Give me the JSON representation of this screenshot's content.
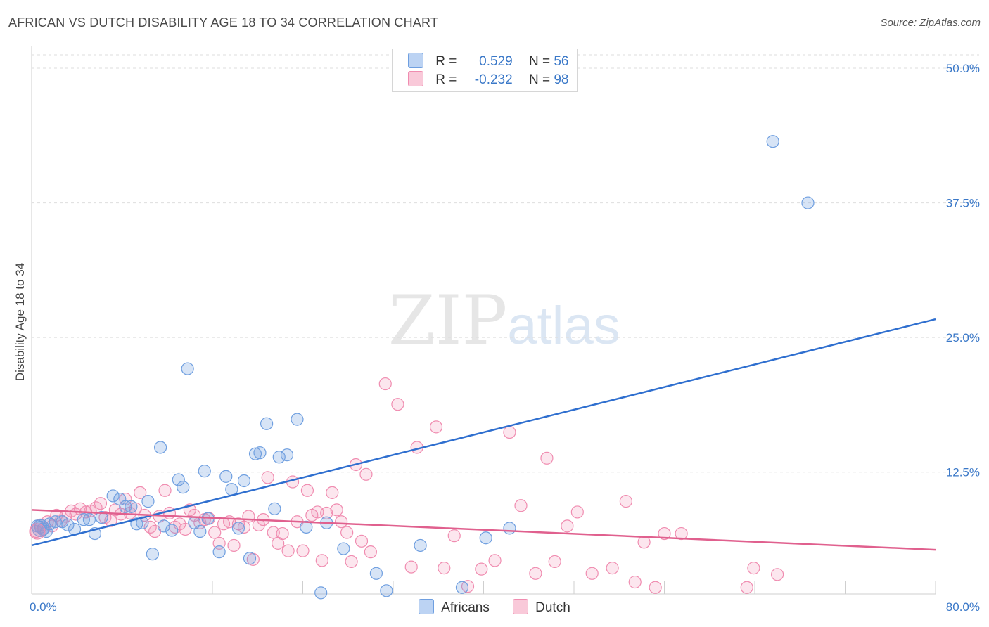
{
  "title": "AFRICAN VS DUTCH DISABILITY AGE 18 TO 34 CORRELATION CHART",
  "source": "Source: ZipAtlas.com",
  "watermark": {
    "zip": "ZIP",
    "atlas": "atlas"
  },
  "legend": {
    "africans": {
      "r_label": "R =",
      "r_value": "0.529",
      "n_label": "N =",
      "n_value": "56"
    },
    "dutch": {
      "r_label": "R =",
      "r_value": "-0.232",
      "n_label": "N =",
      "n_value": "98"
    }
  },
  "bottom_legend": {
    "africans": "Africans",
    "dutch": "Dutch"
  },
  "chart_data": {
    "type": "scatter",
    "title": "AFRICAN VS DUTCH DISABILITY AGE 18 TO 34 CORRELATION CHART",
    "xlabel": "",
    "ylabel": "Disability Age 18 to 34",
    "xlim": [
      0,
      80
    ],
    "ylim": [
      0,
      52
    ],
    "x_tick_labels": [
      "0.0%",
      "80.0%"
    ],
    "y_ticks": [
      12.5,
      25.0,
      37.5,
      50.0
    ],
    "y_tick_labels": [
      "12.5%",
      "25.0%",
      "37.5%",
      "50.0%"
    ],
    "colors": {
      "africans": "#6f9fe0",
      "africans_line": "#2f6fcf",
      "dutch": "#f08cb0",
      "dutch_line": "#e0608e"
    },
    "series": [
      {
        "name": "Africans",
        "trend": {
          "x": [
            0,
            80
          ],
          "y": [
            5.7,
            26.7
          ]
        },
        "points": [
          [
            0.5,
            7.5
          ],
          [
            1.0,
            7.2
          ],
          [
            1.3,
            7.0
          ],
          [
            1.6,
            7.7
          ],
          [
            2.1,
            7.9
          ],
          [
            2.7,
            7.9
          ],
          [
            3.2,
            7.6
          ],
          [
            3.8,
            7.2
          ],
          [
            4.6,
            8.1
          ],
          [
            5.1,
            8.1
          ],
          [
            5.6,
            6.8
          ],
          [
            6.2,
            8.3
          ],
          [
            7.2,
            10.3
          ],
          [
            7.8,
            10.0
          ],
          [
            8.3,
            9.3
          ],
          [
            8.8,
            9.3
          ],
          [
            9.3,
            7.7
          ],
          [
            9.8,
            7.8
          ],
          [
            10.3,
            9.8
          ],
          [
            10.7,
            4.9
          ],
          [
            11.4,
            14.8
          ],
          [
            11.7,
            7.5
          ],
          [
            12.4,
            7.1
          ],
          [
            13.0,
            11.8
          ],
          [
            13.4,
            11.1
          ],
          [
            13.8,
            22.1
          ],
          [
            14.4,
            7.8
          ],
          [
            14.9,
            7.0
          ],
          [
            15.3,
            12.6
          ],
          [
            15.6,
            8.2
          ],
          [
            16.6,
            5.1
          ],
          [
            17.2,
            12.1
          ],
          [
            17.7,
            10.9
          ],
          [
            18.3,
            7.3
          ],
          [
            18.8,
            11.7
          ],
          [
            19.3,
            4.5
          ],
          [
            19.8,
            14.2
          ],
          [
            20.2,
            14.3
          ],
          [
            20.8,
            17.0
          ],
          [
            21.5,
            9.1
          ],
          [
            21.9,
            13.9
          ],
          [
            22.6,
            14.1
          ],
          [
            23.5,
            17.4
          ],
          [
            24.3,
            7.4
          ],
          [
            25.6,
            1.3
          ],
          [
            26.1,
            7.8
          ],
          [
            27.6,
            5.4
          ],
          [
            30.5,
            3.1
          ],
          [
            31.4,
            1.5
          ],
          [
            34.4,
            5.7
          ],
          [
            38.1,
            1.8
          ],
          [
            40.2,
            6.4
          ],
          [
            42.3,
            7.3
          ],
          [
            65.6,
            43.2
          ],
          [
            68.7,
            37.5
          ],
          [
            0.8,
            7.4
          ]
        ]
      },
      {
        "name": "Dutch",
        "trend": {
          "x": [
            0,
            80
          ],
          "y": [
            9.0,
            5.3
          ]
        },
        "points": [
          [
            0.4,
            7.0
          ],
          [
            0.8,
            7.6
          ],
          [
            1.1,
            7.3
          ],
          [
            1.4,
            7.9
          ],
          [
            1.8,
            7.5
          ],
          [
            2.2,
            8.5
          ],
          [
            2.6,
            8.0
          ],
          [
            3.0,
            8.4
          ],
          [
            3.5,
            8.9
          ],
          [
            3.9,
            8.6
          ],
          [
            4.3,
            9.1
          ],
          [
            4.8,
            8.8
          ],
          [
            5.2,
            8.9
          ],
          [
            5.7,
            9.2
          ],
          [
            6.1,
            9.6
          ],
          [
            6.5,
            8.3
          ],
          [
            7.0,
            8.0
          ],
          [
            7.4,
            9.0
          ],
          [
            7.9,
            8.6
          ],
          [
            8.3,
            10.0
          ],
          [
            8.7,
            8.7
          ],
          [
            9.2,
            9.1
          ],
          [
            9.6,
            10.6
          ],
          [
            10.0,
            8.5
          ],
          [
            10.5,
            7.4
          ],
          [
            10.9,
            7.0
          ],
          [
            11.3,
            8.4
          ],
          [
            11.8,
            10.8
          ],
          [
            12.2,
            8.7
          ],
          [
            12.7,
            7.4
          ],
          [
            13.1,
            7.7
          ],
          [
            13.6,
            7.2
          ],
          [
            14.0,
            9.0
          ],
          [
            14.4,
            8.5
          ],
          [
            14.9,
            7.8
          ],
          [
            15.3,
            8.1
          ],
          [
            15.7,
            8.2
          ],
          [
            16.2,
            6.9
          ],
          [
            16.6,
            5.9
          ],
          [
            17.0,
            7.7
          ],
          [
            17.5,
            7.9
          ],
          [
            17.9,
            5.7
          ],
          [
            18.3,
            7.7
          ],
          [
            18.8,
            7.4
          ],
          [
            19.2,
            8.4
          ],
          [
            19.6,
            4.4
          ],
          [
            20.1,
            7.6
          ],
          [
            20.5,
            8.1
          ],
          [
            20.9,
            12.0
          ],
          [
            21.4,
            6.9
          ],
          [
            21.8,
            5.9
          ],
          [
            22.2,
            6.8
          ],
          [
            22.7,
            5.2
          ],
          [
            23.1,
            11.6
          ],
          [
            23.5,
            7.9
          ],
          [
            24.0,
            5.2
          ],
          [
            24.4,
            10.8
          ],
          [
            24.8,
            8.5
          ],
          [
            25.3,
            8.8
          ],
          [
            25.7,
            4.3
          ],
          [
            26.1,
            8.7
          ],
          [
            26.6,
            10.6
          ],
          [
            27.0,
            9.0
          ],
          [
            27.4,
            7.9
          ],
          [
            27.9,
            6.9
          ],
          [
            28.3,
            4.2
          ],
          [
            28.7,
            13.2
          ],
          [
            29.2,
            6.1
          ],
          [
            29.6,
            12.3
          ],
          [
            30.0,
            5.1
          ],
          [
            31.3,
            20.7
          ],
          [
            32.4,
            18.8
          ],
          [
            33.6,
            3.7
          ],
          [
            34.1,
            14.8
          ],
          [
            35.8,
            16.7
          ],
          [
            36.5,
            3.6
          ],
          [
            37.4,
            6.6
          ],
          [
            38.6,
            1.9
          ],
          [
            39.8,
            3.5
          ],
          [
            41.0,
            4.3
          ],
          [
            42.3,
            16.2
          ],
          [
            43.3,
            9.4
          ],
          [
            44.6,
            3.1
          ],
          [
            45.6,
            13.8
          ],
          [
            46.3,
            4.2
          ],
          [
            47.4,
            7.5
          ],
          [
            48.3,
            8.8
          ],
          [
            49.6,
            3.1
          ],
          [
            51.4,
            3.6
          ],
          [
            52.6,
            9.8
          ],
          [
            53.4,
            2.3
          ],
          [
            54.2,
            6.0
          ],
          [
            55.2,
            1.8
          ],
          [
            56.0,
            6.8
          ],
          [
            57.5,
            6.8
          ],
          [
            63.3,
            1.8
          ],
          [
            63.9,
            3.6
          ],
          [
            66.0,
            3.0
          ]
        ]
      }
    ]
  }
}
